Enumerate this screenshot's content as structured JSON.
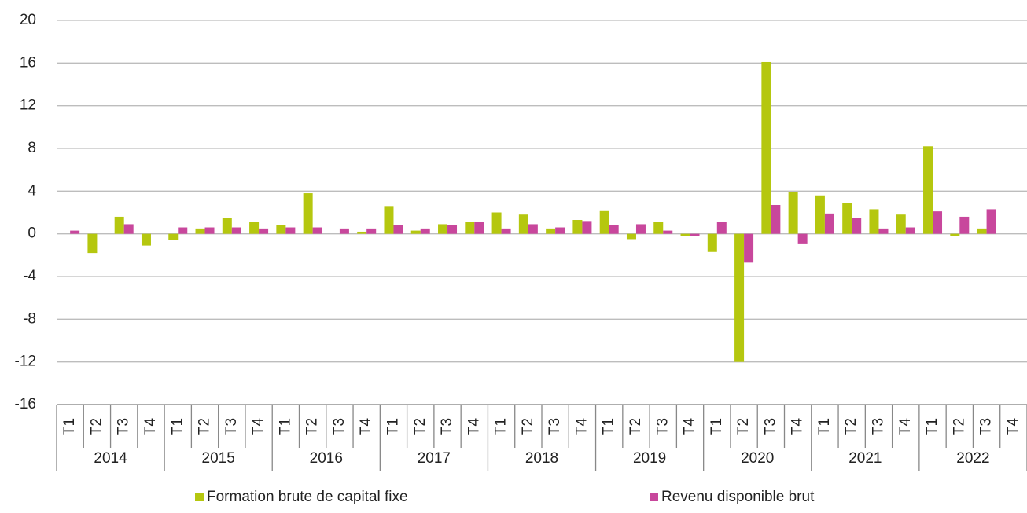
{
  "chart_data": {
    "type": "bar",
    "categories": [
      "T1",
      "T2",
      "T3",
      "T4",
      "T1",
      "T2",
      "T3",
      "T4",
      "T1",
      "T2",
      "T3",
      "T4",
      "T1",
      "T2",
      "T3",
      "T4",
      "T1",
      "T2",
      "T3",
      "T4",
      "T1",
      "T2",
      "T3",
      "T4",
      "T1",
      "T2",
      "T3",
      "T4",
      "T1",
      "T2",
      "T3",
      "T4",
      "T1",
      "T2",
      "T3",
      "T4"
    ],
    "category_groups": [
      "2014",
      "2015",
      "2016",
      "2017",
      "2018",
      "2019",
      "2020",
      "2021",
      "2022"
    ],
    "series": [
      {
        "name": "Formation brute de capital fixe",
        "color": "#b5c70f",
        "values": [
          0,
          -1.8,
          1.6,
          -1.1,
          -0.6,
          0.5,
          1.5,
          1.1,
          0.8,
          3.8,
          0,
          0.2,
          2.6,
          0.3,
          0.9,
          1.1,
          2.0,
          1.8,
          0.5,
          1.3,
          2.2,
          -0.5,
          1.1,
          -0.2,
          -1.7,
          -12.0,
          16.1,
          3.9,
          3.6,
          2.9,
          2.3,
          1.8,
          8.2,
          -0.2,
          0.5,
          null
        ]
      },
      {
        "name": "Revenu disponible brut",
        "color": "#c8479c",
        "values": [
          0.3,
          0,
          0.9,
          0,
          0.6,
          0.6,
          0.6,
          0.5,
          0.6,
          0.6,
          0.5,
          0.5,
          0.8,
          0.5,
          0.8,
          1.1,
          0.5,
          0.9,
          0.6,
          1.2,
          0.8,
          0.9,
          0.3,
          -0.2,
          1.1,
          -2.7,
          2.7,
          -0.9,
          1.9,
          1.5,
          0.5,
          0.6,
          2.1,
          1.6,
          2.3,
          null
        ]
      }
    ],
    "ylim": [
      -16,
      20
    ],
    "yticks": [
      -16,
      -12,
      -8,
      -4,
      0,
      4,
      8,
      12,
      16,
      20
    ],
    "grid": true,
    "legend": "bottom"
  }
}
